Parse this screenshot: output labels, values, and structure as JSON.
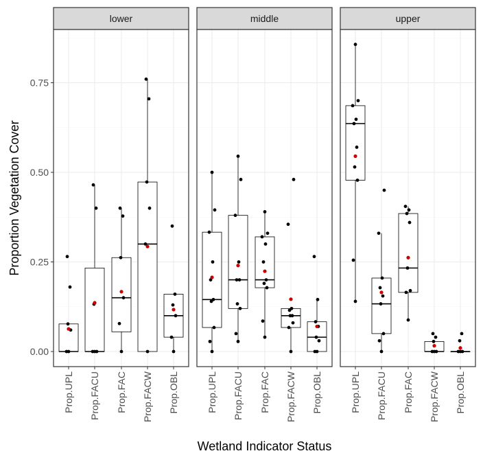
{
  "chart_data": {
    "type": "boxplot",
    "xlabel": "Wetland Indicator Status",
    "ylabel": "Proportion Vegetation Cover",
    "categories": [
      "Prop.UPL",
      "Prop.FACU",
      "Prop.FAC",
      "Prop.FACW",
      "Prop.OBL"
    ],
    "y_ticks": [
      "0.00",
      "0.25",
      "0.50",
      "0.75"
    ],
    "y_tick_values": [
      0,
      0.25,
      0.5,
      0.75
    ],
    "ylim": [
      -0.04,
      0.9
    ],
    "grid": true,
    "mean_color": "#cc0000",
    "point_color": "#000000",
    "panels": [
      {
        "name": "lower",
        "groups": [
          {
            "category": "Prop.UPL",
            "q1": 0.0,
            "median": 0.0,
            "q3": 0.077,
            "whisker_low": 0.0,
            "whisker_high": 0.077,
            "mean": 0.063,
            "points": [
              0.0,
              0.0,
              0.06,
              0.077,
              0.18,
              0.265
            ]
          },
          {
            "category": "Prop.FACU",
            "q1": 0.0,
            "median": 0.0,
            "q3": 0.233,
            "whisker_low": 0.0,
            "whisker_high": 0.465,
            "mean": 0.136,
            "points": [
              0.0,
              0.0,
              0.0,
              0.132,
              0.4,
              0.465
            ]
          },
          {
            "category": "Prop.FAC",
            "q1": 0.055,
            "median": 0.15,
            "q3": 0.262,
            "whisker_low": 0.0,
            "whisker_high": 0.4,
            "mean": 0.167,
            "points": [
              0.0,
              0.078,
              0.15,
              0.262,
              0.378,
              0.4
            ]
          },
          {
            "category": "Prop.FACW",
            "q1": 0.0,
            "median": 0.3,
            "q3": 0.473,
            "whisker_low": 0.0,
            "whisker_high": 0.76,
            "mean": 0.293,
            "points": [
              0.0,
              0.3,
              0.4,
              0.473,
              0.705,
              0.76
            ]
          },
          {
            "category": "Prop.OBL",
            "q1": 0.04,
            "median": 0.1,
            "q3": 0.16,
            "whisker_low": 0.0,
            "whisker_high": 0.16,
            "mean": 0.117,
            "points": [
              0.0,
              0.04,
              0.1,
              0.13,
              0.16,
              0.35
            ]
          }
        ]
      },
      {
        "name": "middle",
        "groups": [
          {
            "category": "Prop.UPL",
            "q1": 0.067,
            "median": 0.145,
            "q3": 0.333,
            "whisker_low": 0.0,
            "whisker_high": 0.5,
            "mean": 0.207,
            "points": [
              0.0,
              0.028,
              0.067,
              0.14,
              0.145,
              0.2,
              0.25,
              0.333,
              0.395,
              0.5
            ]
          },
          {
            "category": "Prop.FACU",
            "q1": 0.12,
            "median": 0.2,
            "q3": 0.38,
            "whisker_low": 0.028,
            "whisker_high": 0.545,
            "mean": 0.24,
            "points": [
              0.028,
              0.05,
              0.12,
              0.133,
              0.2,
              0.2,
              0.25,
              0.38,
              0.48,
              0.545
            ]
          },
          {
            "category": "Prop.FAC",
            "q1": 0.178,
            "median": 0.2,
            "q3": 0.32,
            "whisker_low": 0.04,
            "whisker_high": 0.39,
            "mean": 0.224,
            "points": [
              0.04,
              0.085,
              0.178,
              0.19,
              0.2,
              0.25,
              0.3,
              0.32,
              0.33,
              0.39
            ]
          },
          {
            "category": "Prop.FACW",
            "q1": 0.067,
            "median": 0.1,
            "q3": 0.12,
            "whisker_low": 0.0,
            "whisker_high": 0.12,
            "mean": 0.146,
            "points": [
              0.0,
              0.067,
              0.08,
              0.1,
              0.1,
              0.115,
              0.12,
              0.355,
              0.48
            ]
          },
          {
            "category": "Prop.OBL",
            "q1": 0.0,
            "median": 0.04,
            "q3": 0.083,
            "whisker_low": 0.0,
            "whisker_high": 0.145,
            "mean": 0.07,
            "points": [
              0.0,
              0.0,
              0.03,
              0.04,
              0.07,
              0.083,
              0.145,
              0.265
            ]
          }
        ]
      },
      {
        "name": "upper",
        "groups": [
          {
            "category": "Prop.UPL",
            "q1": 0.478,
            "median": 0.636,
            "q3": 0.686,
            "whisker_low": 0.14,
            "whisker_high": 0.857,
            "mean": 0.545,
            "points": [
              0.14,
              0.255,
              0.478,
              0.515,
              0.57,
              0.636,
              0.648,
              0.686,
              0.7,
              0.857
            ]
          },
          {
            "category": "Prop.FACU",
            "q1": 0.05,
            "median": 0.133,
            "q3": 0.205,
            "whisker_low": 0.0,
            "whisker_high": 0.33,
            "mean": 0.165,
            "points": [
              0.0,
              0.03,
              0.05,
              0.133,
              0.155,
              0.178,
              0.205,
              0.33,
              0.45
            ]
          },
          {
            "category": "Prop.FAC",
            "q1": 0.165,
            "median": 0.233,
            "q3": 0.385,
            "whisker_low": 0.088,
            "whisker_high": 0.405,
            "mean": 0.262,
            "points": [
              0.088,
              0.165,
              0.17,
              0.233,
              0.36,
              0.385,
              0.395,
              0.405
            ]
          },
          {
            "category": "Prop.FACW",
            "q1": 0.0,
            "median": 0.0,
            "q3": 0.028,
            "whisker_low": 0.0,
            "whisker_high": 0.028,
            "mean": 0.016,
            "points": [
              0.0,
              0.0,
              0.0,
              0.028,
              0.04,
              0.05
            ]
          },
          {
            "category": "Prop.OBL",
            "q1": 0.0,
            "median": 0.0,
            "q3": 0.0,
            "whisker_low": 0.0,
            "whisker_high": 0.0,
            "mean": 0.01,
            "points": [
              0.0,
              0.0,
              0.0,
              0.03,
              0.05
            ]
          }
        ]
      }
    ]
  }
}
